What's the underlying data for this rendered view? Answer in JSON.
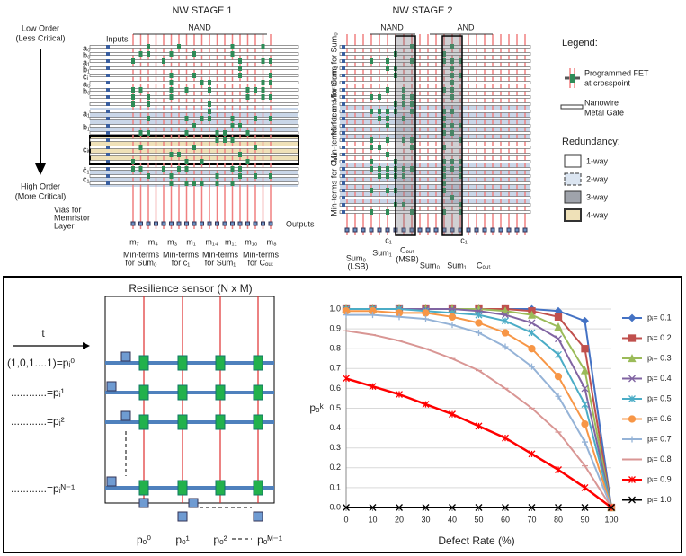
{
  "stage1": {
    "title": "NW STAGE 1",
    "nand": "NAND",
    "inputs": "Inputs",
    "low_order": [
      "Low Order",
      "(Less Critical)"
    ],
    "high_order": [
      "High Order",
      "(More Critical)"
    ],
    "input_labels": [
      "a₀",
      "b₀",
      "a₁",
      "b₁",
      "c̄ᵢ",
      "a₀",
      "b₀",
      "a₁",
      "b₁",
      "cᵢₙ",
      "c̄₁",
      "c₁"
    ],
    "vias": [
      "Vias for",
      "Memristor",
      "Layer"
    ],
    "outputs": "Outputs",
    "minterm_ranges": [
      "m₇ – m₄",
      "m₃ – m₁",
      "m₁₄– m₁₁",
      "m₁₀ – m₈"
    ],
    "minterm_groups": [
      [
        "Min-terms",
        "for Sum₀"
      ],
      [
        "Min-terms",
        "for c₁"
      ],
      [
        "Min-terms",
        "for Sum₁"
      ],
      [
        "Min-terms",
        "for Cₒᵤₜ"
      ]
    ]
  },
  "stage2": {
    "title": "NW STAGE 2",
    "nand": "NAND",
    "and": "AND",
    "side_labels": [
      "Min-terms for Sum₀",
      "Min-terms for Sum₁",
      "Min-terms for cᵢ",
      "Min-terms for Cₒᵤₜ"
    ],
    "outputs_nand": [
      "Sum₀",
      "Sum₁",
      "Cₒᵤₜ"
    ],
    "outputs_nand_notes": [
      "(LSB)",
      "(MSB)"
    ],
    "c1_labels": [
      "c₁",
      "c₁"
    ],
    "outputs_and": [
      "Sum₀",
      "Sum₁",
      "Cₒᵤₜ"
    ]
  },
  "legend": {
    "title": "Legend:",
    "fet": [
      "Programmed FET",
      "at crosspoint"
    ],
    "gate": [
      "Nanowire",
      "Metal Gate"
    ],
    "redundancy": "Redundancy:",
    "levels": [
      "1-way",
      "2-way",
      "3-way",
      "4-way"
    ]
  },
  "sensor": {
    "title": "Resilience sensor (N x M)",
    "time": "t",
    "rows": [
      "(1,0,1....1)=pᵢ⁰",
      "............=pᵢ¹",
      "............=pᵢ²",
      "............=pᵢᴺ⁻¹"
    ],
    "outputs": [
      "pₒ⁰",
      "pₒ¹",
      "pₒ²",
      "pₒᴹ⁻¹"
    ]
  },
  "chart_data": {
    "type": "line",
    "x_label": "Defect Rate (%)",
    "y_label": "pₒᵏ",
    "x": [
      0,
      10,
      20,
      30,
      40,
      50,
      60,
      70,
      80,
      90,
      100
    ],
    "xlim": [
      0,
      100
    ],
    "xticks": [
      0,
      10,
      20,
      30,
      40,
      50,
      60,
      70,
      80,
      90,
      100
    ],
    "ylim": [
      0,
      1
    ],
    "yticks": [
      {
        "value": 0,
        "label": "0.0"
      },
      0.1,
      0.2,
      0.3,
      0.4,
      0.5,
      0.6,
      0.7,
      0.8,
      0.9,
      {
        "value": 1,
        "label": "1.0"
      }
    ],
    "grid": true,
    "legend": "right",
    "series": [
      {
        "name": "pᵢ= 0.1",
        "color": "#4472c4",
        "marker": "diamond",
        "values": [
          1,
          1,
          1,
          1,
          1,
          1,
          1,
          1,
          0.99,
          0.94,
          0
        ]
      },
      {
        "name": "pᵢ= 0.2",
        "color": "#c0504d",
        "marker": "square",
        "values": [
          1,
          1,
          1,
          1,
          1,
          1,
          1,
          0.99,
          0.96,
          0.8,
          0
        ]
      },
      {
        "name": "pᵢ= 0.3",
        "color": "#9bbb59",
        "marker": "triangle",
        "values": [
          1,
          1,
          1,
          1,
          1,
          1,
          0.99,
          0.97,
          0.91,
          0.69,
          0
        ]
      },
      {
        "name": "pᵢ= 0.4",
        "color": "#8064a2",
        "marker": "x",
        "values": [
          1,
          1,
          1,
          1,
          1,
          0.99,
          0.97,
          0.93,
          0.85,
          0.6,
          0
        ]
      },
      {
        "name": "pᵢ= 0.5",
        "color": "#4bacc6",
        "marker": "star",
        "values": [
          1,
          1,
          1,
          0.99,
          0.98,
          0.97,
          0.94,
          0.88,
          0.77,
          0.52,
          0
        ]
      },
      {
        "name": "pᵢ= 0.6",
        "color": "#f79646",
        "marker": "circle",
        "values": [
          0.99,
          0.99,
          0.98,
          0.98,
          0.96,
          0.93,
          0.88,
          0.8,
          0.66,
          0.42,
          0
        ]
      },
      {
        "name": "pᵢ= 0.7",
        "color": "#95b3d7",
        "marker": "plus",
        "values": [
          0.97,
          0.97,
          0.96,
          0.95,
          0.92,
          0.88,
          0.81,
          0.71,
          0.56,
          0.33,
          0
        ]
      },
      {
        "name": "pᵢ= 0.8",
        "color": "#d99694",
        "marker": "dash",
        "values": [
          0.89,
          0.87,
          0.84,
          0.8,
          0.75,
          0.69,
          0.6,
          0.5,
          0.38,
          0.21,
          0
        ]
      },
      {
        "name": "pᵢ= 0.9",
        "color": "#ff0000",
        "marker": "asterisk",
        "values": [
          0.65,
          0.61,
          0.57,
          0.52,
          0.47,
          0.41,
          0.35,
          0.27,
          0.19,
          0.1,
          0
        ]
      },
      {
        "name": "pᵢ= 1.0",
        "color": "#000000",
        "marker": "x",
        "values": [
          0,
          0,
          0,
          0,
          0,
          0,
          0,
          0,
          0,
          0,
          0
        ]
      }
    ]
  }
}
